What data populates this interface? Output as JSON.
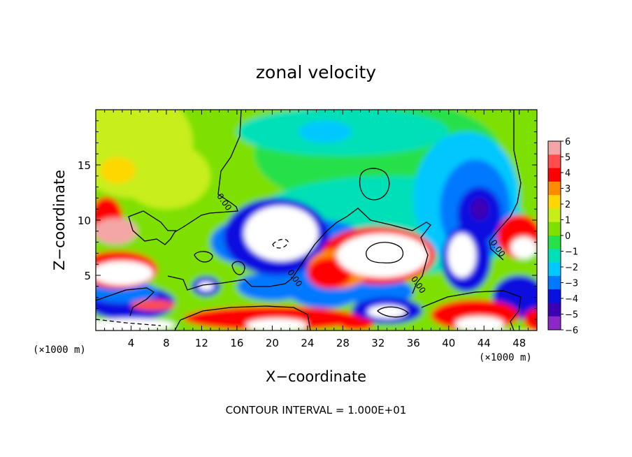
{
  "chart_data": {
    "type": "heatmap",
    "title": "zonal velocity",
    "xlabel": "X−coordinate",
    "ylabel": "Z−coordinate",
    "x_unit_left": "(×1000 m)",
    "x_unit_right": "(×1000 m)",
    "footer": "CONTOUR INTERVAL = 1.000E+01",
    "xlim": [
      0,
      50
    ],
    "ylim": [
      0,
      20
    ],
    "x_ticks": [
      4,
      8,
      12,
      16,
      20,
      24,
      28,
      32,
      36,
      40,
      44,
      48
    ],
    "y_ticks": [
      5,
      10,
      15
    ],
    "colorbar": {
      "min": -6,
      "max": 6,
      "labels": [
        "6",
        "5",
        "4",
        "3",
        "2",
        "1",
        "0",
        "−1",
        "−2",
        "−3",
        "−4",
        "−5",
        "−6"
      ],
      "colors": [
        "#f4a6a6",
        "#ff4d4d",
        "#ff0000",
        "#ff8c00",
        "#ffd700",
        "#c8ee1a",
        "#7ee000",
        "#28e04a",
        "#00e0b8",
        "#00c8ff",
        "#0078ff",
        "#0a10e0",
        "#3c00b4",
        "#8c28c8"
      ]
    },
    "contour_labels": [
      {
        "text": "0.00",
        "x": 14.3,
        "z": 11.5
      },
      {
        "text": "0.00",
        "x": 22.3,
        "z": 4.6
      },
      {
        "text": "0.00",
        "x": 36.3,
        "z": 4.0
      },
      {
        "text": "0.00",
        "x": 45.3,
        "z": 7.3
      }
    ],
    "regions": [
      {
        "color": "#7ee000",
        "x": 25,
        "z": 12,
        "rx": 40,
        "rz": 14
      },
      {
        "color": "#c8ee1a",
        "x": 4,
        "z": 17,
        "rx": 7,
        "rz": 5
      },
      {
        "color": "#c8ee1a",
        "x": 8,
        "z": 14,
        "rx": 5,
        "rz": 3
      },
      {
        "color": "#ffd700",
        "x": 2.5,
        "z": 14.5,
        "rx": 2,
        "rz": 1.2
      },
      {
        "color": "#28e04a",
        "x": 32,
        "z": 16,
        "rx": 14,
        "rz": 5
      },
      {
        "color": "#00e0b8",
        "x": 28,
        "z": 18,
        "rx": 12,
        "rz": 2.2
      },
      {
        "color": "#00c8ff",
        "x": 26,
        "z": 18,
        "rx": 3,
        "rz": 1
      },
      {
        "color": "#00e0b8",
        "x": 33,
        "z": 9.5,
        "rx": 16,
        "rz": 4.5
      },
      {
        "color": "#00c8ff",
        "x": 42,
        "z": 12,
        "rx": 6,
        "rz": 6
      },
      {
        "color": "#0078ff",
        "x": 43,
        "z": 11,
        "rx": 4,
        "rz": 4.5
      },
      {
        "color": "#0a10e0",
        "x": 43.5,
        "z": 10.5,
        "rx": 2.5,
        "rz": 2.5
      },
      {
        "color": "#3c00b4",
        "x": 43.5,
        "z": 11,
        "rx": 1,
        "rz": 1
      },
      {
        "color": "#0078ff",
        "x": 26,
        "z": 6,
        "rx": 6,
        "rz": 4
      },
      {
        "color": "#0078ff",
        "x": 17,
        "z": 8,
        "rx": 4,
        "rz": 2
      },
      {
        "color": "#0078ff",
        "x": 20,
        "z": 4,
        "rx": 4,
        "rz": 1.3
      },
      {
        "color": "#0a10e0",
        "x": 20.5,
        "z": 8.5,
        "rx": 6,
        "rz": 3.5
      },
      {
        "color": "#ffffff",
        "x": 21,
        "z": 8.8,
        "rx": 4.2,
        "rz": 2.5
      },
      {
        "color": "#0a10e0",
        "x": 12.5,
        "z": 4,
        "rx": 1.6,
        "rz": 0.9
      },
      {
        "color": "#ffffff",
        "x": 12.5,
        "z": 4,
        "rx": 0.9,
        "rz": 0.4
      },
      {
        "color": "#0a10e0",
        "x": 42,
        "z": 6.5,
        "rx": 2.8,
        "rz": 3
      },
      {
        "color": "#ffffff",
        "x": 41.5,
        "z": 6.8,
        "rx": 1.6,
        "rz": 2
      },
      {
        "color": "#0078ff",
        "x": 32,
        "z": 3.5,
        "rx": 4,
        "rz": 1.3
      },
      {
        "color": "#0a10e0",
        "x": 33,
        "z": 1.8,
        "rx": 4,
        "rz": 1.2
      },
      {
        "color": "#ffffff",
        "x": 33,
        "z": 1.7,
        "rx": 2.2,
        "rz": 0.6
      },
      {
        "color": "#0a10e0",
        "x": 4,
        "z": 2.5,
        "rx": 5,
        "rz": 1.6
      },
      {
        "color": "#0078ff",
        "x": 3,
        "z": 3.5,
        "rx": 4,
        "rz": 1
      },
      {
        "color": "#0a10e0",
        "x": 48,
        "z": 3,
        "rx": 3,
        "rz": 2
      },
      {
        "color": "#ff0000",
        "x": 32,
        "z": 6.8,
        "rx": 6.5,
        "rz": 2.6
      },
      {
        "color": "#ff8c00",
        "x": 27.5,
        "z": 5.6,
        "rx": 3.5,
        "rz": 1.8
      },
      {
        "color": "#ff0000",
        "x": 26.5,
        "z": 5.2,
        "rx": 2.5,
        "rz": 1.4
      },
      {
        "color": "#ffffff",
        "x": 32.5,
        "z": 6.8,
        "rx": 5.2,
        "rz": 2
      },
      {
        "color": "#ff0000",
        "x": 2.5,
        "z": 5.5,
        "rx": 4.5,
        "rz": 1.7
      },
      {
        "color": "#ffffff",
        "x": 3,
        "z": 5.2,
        "rx": 3.5,
        "rz": 1.1
      },
      {
        "color": "#ff0000",
        "x": 1.2,
        "z": 10.3,
        "rx": 1.8,
        "rz": 1.8
      },
      {
        "color": "#f4a6a6",
        "x": 2.2,
        "z": 9,
        "rx": 2.5,
        "rz": 1.2
      },
      {
        "color": "#ff0000",
        "x": 48,
        "z": 8.5,
        "rx": 2.5,
        "rz": 2
      },
      {
        "color": "#ffffff",
        "x": 48.5,
        "z": 7.5,
        "rx": 1.5,
        "rz": 1
      },
      {
        "color": "#ff4d4d",
        "x": 6.5,
        "z": 2.3,
        "rx": 2.5,
        "rz": 0.5
      },
      {
        "color": "#ff0000",
        "x": 20,
        "z": 1.1,
        "rx": 10,
        "rz": 1.1
      },
      {
        "color": "#ffffff",
        "x": 20.5,
        "z": 0.5,
        "rx": 3.5,
        "rz": 0.6
      },
      {
        "color": "#ff0000",
        "x": 43,
        "z": 1.4,
        "rx": 5,
        "rz": 1.4
      },
      {
        "color": "#ffffff",
        "x": 43.5,
        "z": 0.6,
        "rx": 2.8,
        "rz": 0.7
      },
      {
        "color": "#ff0000",
        "x": 29.5,
        "z": 0.6,
        "rx": 2,
        "rz": 0.6
      },
      {
        "color": "#ff0000",
        "x": 50,
        "z": 1,
        "rx": 1.5,
        "rz": 1
      },
      {
        "color": "#ffffff",
        "x": 4,
        "z": 0.5,
        "rx": 5,
        "rz": 0.6
      }
    ]
  }
}
